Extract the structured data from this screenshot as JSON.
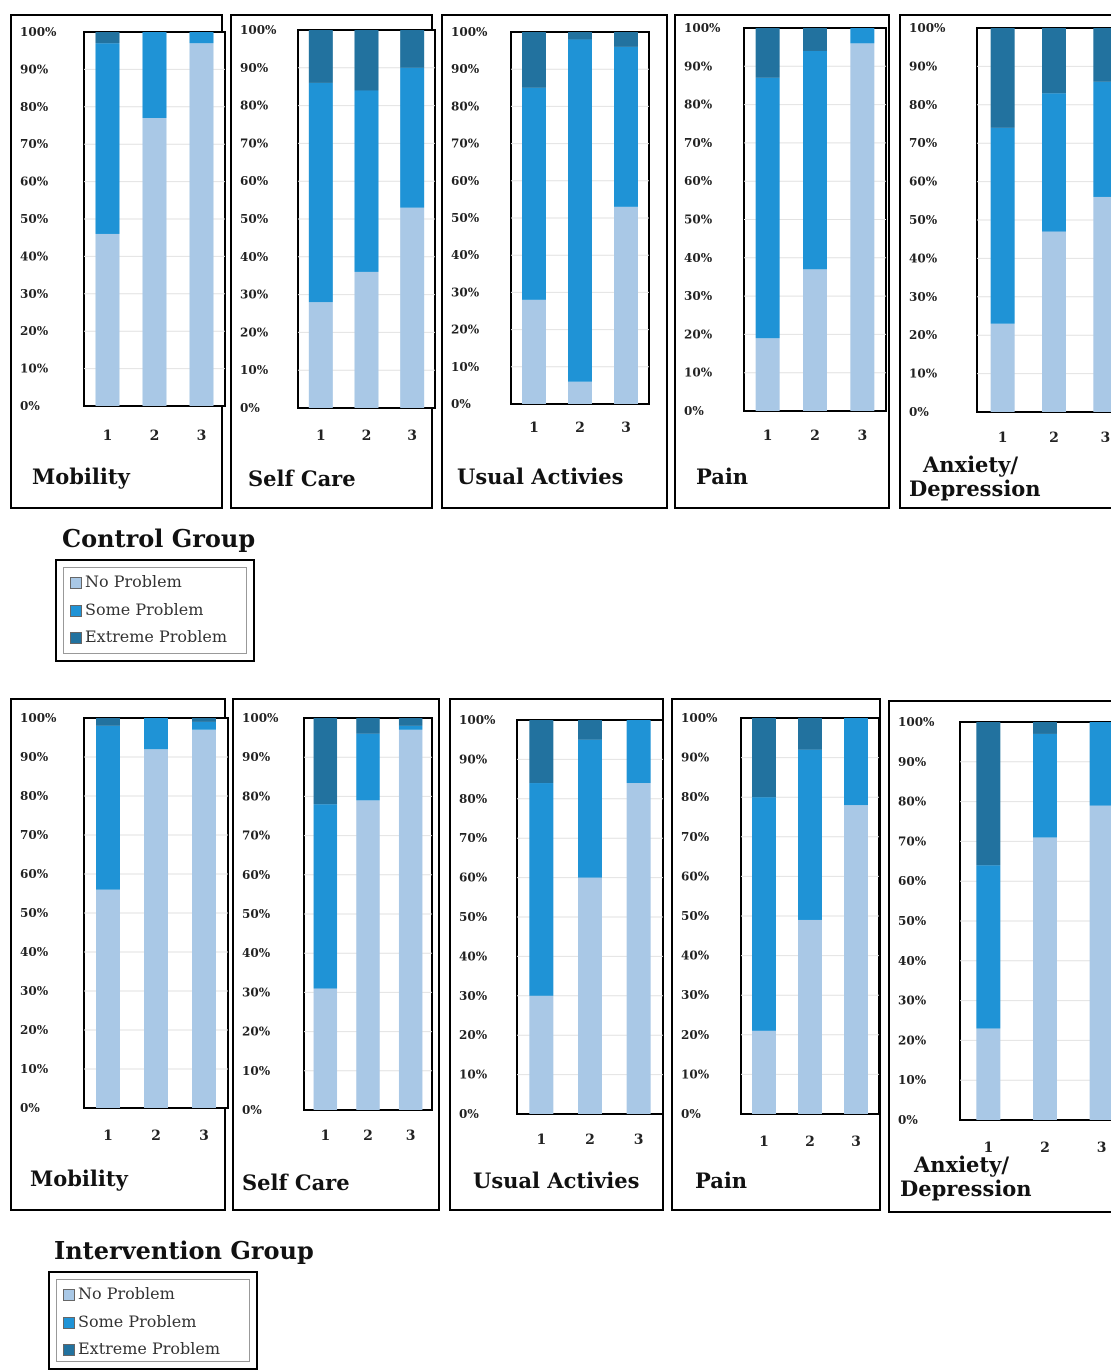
{
  "colors": {
    "no_problem": "#a9c8e6",
    "some_problem": "#1f93d6",
    "extreme_problem": "#22729f"
  },
  "control": {
    "group_title": "Control Group",
    "legend": [
      "No Problem",
      "Some Problem",
      "Extreme Problem"
    ]
  },
  "intervention": {
    "group_title": "Intervention Group",
    "legend": [
      "No Problem",
      "Some Problem",
      "Extreme Problem"
    ]
  },
  "chart_data": [
    {
      "type": "bar",
      "stacked": true,
      "percent": true,
      "group": "Control Group",
      "title": "Mobility",
      "categories": [
        "1",
        "2",
        "3"
      ],
      "yticks": [
        "0%",
        "10%",
        "20%",
        "30%",
        "40%",
        "50%",
        "60%",
        "70%",
        "80%",
        "90%",
        "100%"
      ],
      "ylim": [
        0,
        100
      ],
      "series": [
        {
          "name": "No Problem",
          "values": [
            46,
            77,
            97
          ]
        },
        {
          "name": "Some Problem",
          "values": [
            51,
            23,
            3
          ]
        },
        {
          "name": "Extreme Problem",
          "values": [
            3,
            0,
            0
          ]
        }
      ]
    },
    {
      "type": "bar",
      "stacked": true,
      "percent": true,
      "group": "Control Group",
      "title": "Self Care",
      "categories": [
        "1",
        "2",
        "3"
      ],
      "yticks": [
        "0%",
        "10%",
        "20%",
        "30%",
        "40%",
        "50%",
        "60%",
        "70%",
        "80%",
        "90%",
        "100%"
      ],
      "ylim": [
        0,
        100
      ],
      "series": [
        {
          "name": "No Problem",
          "values": [
            28,
            36,
            53
          ]
        },
        {
          "name": "Some Problem",
          "values": [
            58,
            48,
            37
          ]
        },
        {
          "name": "Extreme Problem",
          "values": [
            14,
            16,
            10
          ]
        }
      ]
    },
    {
      "type": "bar",
      "stacked": true,
      "percent": true,
      "group": "Control Group",
      "title": "Usual Activies",
      "categories": [
        "1",
        "2",
        "3"
      ],
      "yticks": [
        "0%",
        "10%",
        "20%",
        "30%",
        "40%",
        "50%",
        "60%",
        "70%",
        "80%",
        "90%",
        "100%"
      ],
      "ylim": [
        0,
        100
      ],
      "series": [
        {
          "name": "No Problem",
          "values": [
            28,
            6,
            53
          ]
        },
        {
          "name": "Some Problem",
          "values": [
            57,
            92,
            43
          ]
        },
        {
          "name": "Extreme Problem",
          "values": [
            15,
            2,
            4
          ]
        }
      ]
    },
    {
      "type": "bar",
      "stacked": true,
      "percent": true,
      "group": "Control Group",
      "title": "Pain",
      "categories": [
        "1",
        "2",
        "3"
      ],
      "yticks": [
        "0%",
        "10%",
        "20%",
        "30%",
        "40%",
        "50%",
        "60%",
        "70%",
        "80%",
        "90%",
        "100%"
      ],
      "ylim": [
        0,
        100
      ],
      "series": [
        {
          "name": "No Problem",
          "values": [
            19,
            37,
            96
          ]
        },
        {
          "name": "Some Problem",
          "values": [
            68,
            57,
            4
          ]
        },
        {
          "name": "Extreme Problem",
          "values": [
            13,
            6,
            0
          ]
        }
      ]
    },
    {
      "type": "bar",
      "stacked": true,
      "percent": true,
      "group": "Control Group",
      "title": "Anxiety/ Depression",
      "title_lines": [
        "Anxiety/",
        "Depression"
      ],
      "categories": [
        "1",
        "2",
        "3"
      ],
      "yticks": [
        "0%",
        "10%",
        "20%",
        "30%",
        "40%",
        "50%",
        "60%",
        "70%",
        "80%",
        "90%",
        "100%"
      ],
      "ylim": [
        0,
        100
      ],
      "series": [
        {
          "name": "No Problem",
          "values": [
            23,
            47,
            56
          ]
        },
        {
          "name": "Some Problem",
          "values": [
            51,
            36,
            30
          ]
        },
        {
          "name": "Extreme Problem",
          "values": [
            26,
            17,
            14
          ]
        }
      ]
    },
    {
      "type": "bar",
      "stacked": true,
      "percent": true,
      "group": "Intervention Group",
      "title": "Mobility",
      "categories": [
        "1",
        "2",
        "3"
      ],
      "yticks": [
        "0%",
        "10%",
        "20%",
        "30%",
        "40%",
        "50%",
        "60%",
        "70%",
        "80%",
        "90%",
        "100%"
      ],
      "ylim": [
        0,
        100
      ],
      "series": [
        {
          "name": "No Problem",
          "values": [
            56,
            92,
            97
          ]
        },
        {
          "name": "Some Problem",
          "values": [
            42,
            8,
            2
          ]
        },
        {
          "name": "Extreme Problem",
          "values": [
            2,
            0,
            1
          ]
        }
      ]
    },
    {
      "type": "bar",
      "stacked": true,
      "percent": true,
      "group": "Intervention Group",
      "title": "Self Care",
      "categories": [
        "1",
        "2",
        "3"
      ],
      "yticks": [
        "0%",
        "10%",
        "20%",
        "30%",
        "40%",
        "50%",
        "60%",
        "70%",
        "80%",
        "90%",
        "100%"
      ],
      "ylim": [
        0,
        100
      ],
      "series": [
        {
          "name": "No Problem",
          "values": [
            31,
            79,
            97
          ]
        },
        {
          "name": "Some Problem",
          "values": [
            47,
            17,
            1
          ]
        },
        {
          "name": "Extreme Problem",
          "values": [
            22,
            4,
            2
          ]
        }
      ]
    },
    {
      "type": "bar",
      "stacked": true,
      "percent": true,
      "group": "Intervention Group",
      "title": "Usual Activies",
      "categories": [
        "1",
        "2",
        "3"
      ],
      "yticks": [
        "0%",
        "10%",
        "20%",
        "30%",
        "40%",
        "50%",
        "60%",
        "70%",
        "80%",
        "90%",
        "100%"
      ],
      "ylim": [
        0,
        100
      ],
      "series": [
        {
          "name": "No Problem",
          "values": [
            30,
            60,
            84
          ]
        },
        {
          "name": "Some Problem",
          "values": [
            54,
            35,
            16
          ]
        },
        {
          "name": "Extreme Problem",
          "values": [
            16,
            5,
            0
          ]
        }
      ]
    },
    {
      "type": "bar",
      "stacked": true,
      "percent": true,
      "group": "Intervention Group",
      "title": "Pain",
      "categories": [
        "1",
        "2",
        "3"
      ],
      "yticks": [
        "0%",
        "10%",
        "20%",
        "30%",
        "40%",
        "50%",
        "60%",
        "70%",
        "80%",
        "90%",
        "100%"
      ],
      "ylim": [
        0,
        100
      ],
      "series": [
        {
          "name": "No Problem",
          "values": [
            21,
            49,
            78
          ]
        },
        {
          "name": "Some Problem",
          "values": [
            59,
            43,
            22
          ]
        },
        {
          "name": "Extreme Problem",
          "values": [
            20,
            8,
            0
          ]
        }
      ]
    },
    {
      "type": "bar",
      "stacked": true,
      "percent": true,
      "group": "Intervention Group",
      "title": "Anxiety/ Depression",
      "title_lines": [
        "Anxiety/",
        "Depression"
      ],
      "categories": [
        "1",
        "2",
        "3"
      ],
      "yticks": [
        "0%",
        "10%",
        "20%",
        "30%",
        "40%",
        "50%",
        "60%",
        "70%",
        "80%",
        "90%",
        "100%"
      ],
      "ylim": [
        0,
        100
      ],
      "series": [
        {
          "name": "No Problem",
          "values": [
            23,
            71,
            79
          ]
        },
        {
          "name": "Some Problem",
          "values": [
            41,
            26,
            21
          ]
        },
        {
          "name": "Extreme Problem",
          "values": [
            36,
            3,
            0
          ]
        }
      ]
    }
  ]
}
